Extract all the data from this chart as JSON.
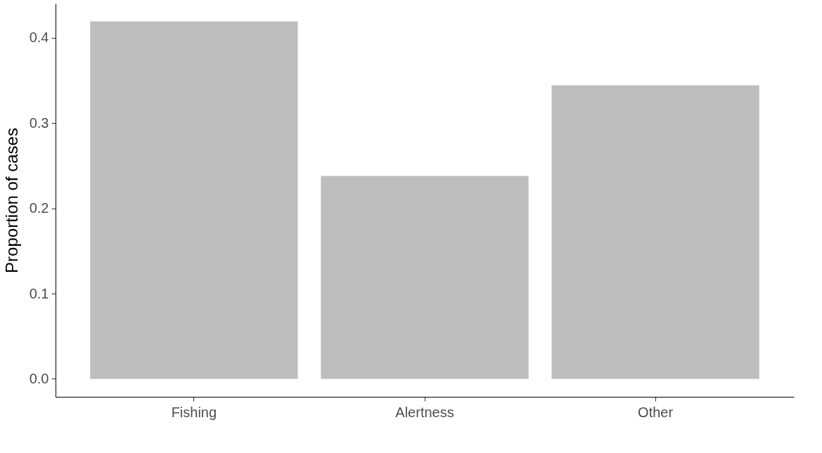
{
  "chart_data": {
    "type": "bar",
    "ylabel": "Proportion of cases",
    "categories": [
      "Fishing",
      "Alertness",
      "Other"
    ],
    "values": [
      0.419,
      0.238,
      0.344
    ],
    "color": "#bebebe",
    "ylim": [
      -0.021,
      0.44
    ],
    "yticks": [
      {
        "value": 0,
        "label": "0.0"
      },
      0.1,
      0.2,
      0.3,
      0.4
    ],
    "grid": false
  }
}
